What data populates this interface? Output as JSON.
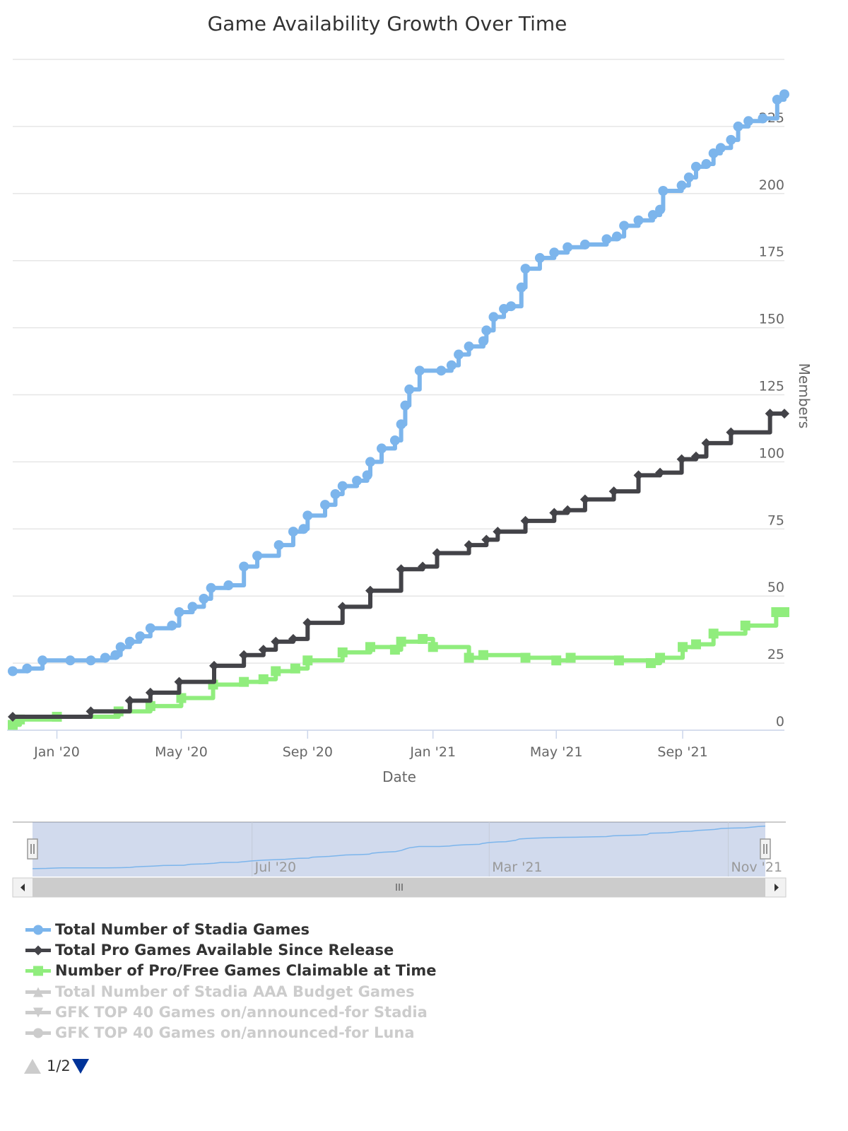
{
  "chart_data": {
    "type": "line",
    "step": true,
    "title": "Game Availability Growth Over Time",
    "xlabel": "Date",
    "ylabel": "Members",
    "xlim": [
      "2019-11-19",
      "2021-12-09"
    ],
    "ylim": [
      0,
      250
    ],
    "y_ticks": [
      0,
      25,
      50,
      75,
      100,
      125,
      150,
      175,
      200,
      225
    ],
    "x_ticks": [
      {
        "date": "2020-01-01",
        "label": "Jan '20"
      },
      {
        "date": "2020-05-01",
        "label": "May '20"
      },
      {
        "date": "2020-09-01",
        "label": "Sep '20"
      },
      {
        "date": "2021-01-01",
        "label": "Jan '21"
      },
      {
        "date": "2021-05-01",
        "label": "May '21"
      },
      {
        "date": "2021-09-01",
        "label": "Sep '21"
      }
    ],
    "grid": true,
    "y_axis_side": "right",
    "legend_position": "bottom",
    "series": [
      {
        "name": "Total Number of Stadia Games",
        "color": "#7cb5ec",
        "marker": "circle",
        "visible": true,
        "points": [
          [
            "2019-11-19",
            22
          ],
          [
            "2019-12-03",
            23
          ],
          [
            "2019-12-18",
            26
          ],
          [
            "2020-01-14",
            26
          ],
          [
            "2020-02-03",
            26
          ],
          [
            "2020-02-17",
            27
          ],
          [
            "2020-02-27",
            28
          ],
          [
            "2020-03-03",
            31
          ],
          [
            "2020-03-12",
            33
          ],
          [
            "2020-03-22",
            35
          ],
          [
            "2020-04-01",
            38
          ],
          [
            "2020-04-22",
            39
          ],
          [
            "2020-04-29",
            44
          ],
          [
            "2020-05-12",
            46
          ],
          [
            "2020-05-23",
            49
          ],
          [
            "2020-05-30",
            53
          ],
          [
            "2020-06-16",
            54
          ],
          [
            "2020-07-01",
            61
          ],
          [
            "2020-07-14",
            65
          ],
          [
            "2020-08-04",
            69
          ],
          [
            "2020-08-18",
            74
          ],
          [
            "2020-08-28",
            75
          ],
          [
            "2020-09-01",
            80
          ],
          [
            "2020-09-18",
            84
          ],
          [
            "2020-09-28",
            88
          ],
          [
            "2020-10-05",
            91
          ],
          [
            "2020-10-19",
            93
          ],
          [
            "2020-10-29",
            95
          ],
          [
            "2020-11-01",
            100
          ],
          [
            "2020-11-12",
            105
          ],
          [
            "2020-11-25",
            108
          ],
          [
            "2020-12-01",
            114
          ],
          [
            "2020-12-05",
            121
          ],
          [
            "2020-12-09",
            127
          ],
          [
            "2020-12-19",
            134
          ],
          [
            "2021-01-09",
            134
          ],
          [
            "2021-01-19",
            136
          ],
          [
            "2021-01-26",
            140
          ],
          [
            "2021-02-05",
            143
          ],
          [
            "2021-02-19",
            145
          ],
          [
            "2021-02-22",
            149
          ],
          [
            "2021-03-01",
            154
          ],
          [
            "2021-03-11",
            157
          ],
          [
            "2021-03-18",
            158
          ],
          [
            "2021-03-28",
            165
          ],
          [
            "2021-04-01",
            172
          ],
          [
            "2021-04-15",
            176
          ],
          [
            "2021-04-29",
            178
          ],
          [
            "2021-05-12",
            180
          ],
          [
            "2021-05-29",
            181
          ],
          [
            "2021-06-19",
            183
          ],
          [
            "2021-06-29",
            184
          ],
          [
            "2021-07-06",
            188
          ],
          [
            "2021-07-20",
            190
          ],
          [
            "2021-08-03",
            192
          ],
          [
            "2021-08-10",
            194
          ],
          [
            "2021-08-13",
            201
          ],
          [
            "2021-08-31",
            203
          ],
          [
            "2021-09-07",
            206
          ],
          [
            "2021-09-14",
            210
          ],
          [
            "2021-09-24",
            211
          ],
          [
            "2021-10-01",
            215
          ],
          [
            "2021-10-08",
            217
          ],
          [
            "2021-10-18",
            220
          ],
          [
            "2021-10-25",
            225
          ],
          [
            "2021-11-04",
            227
          ],
          [
            "2021-11-18",
            228
          ],
          [
            "2021-12-02",
            235
          ],
          [
            "2021-12-09",
            237
          ]
        ]
      },
      {
        "name": "Total Pro Games Available Since Release",
        "color": "#434348",
        "marker": "diamond",
        "visible": true,
        "points": [
          [
            "2019-11-19",
            5
          ],
          [
            "2020-02-03",
            7
          ],
          [
            "2020-03-12",
            11
          ],
          [
            "2020-04-01",
            14
          ],
          [
            "2020-04-29",
            18
          ],
          [
            "2020-06-02",
            24
          ],
          [
            "2020-07-01",
            28
          ],
          [
            "2020-07-20",
            30
          ],
          [
            "2020-08-01",
            33
          ],
          [
            "2020-08-18",
            34
          ],
          [
            "2020-09-01",
            40
          ],
          [
            "2020-10-05",
            46
          ],
          [
            "2020-11-01",
            52
          ],
          [
            "2020-12-01",
            60
          ],
          [
            "2020-12-22",
            61
          ],
          [
            "2021-01-05",
            66
          ],
          [
            "2021-02-05",
            69
          ],
          [
            "2021-02-22",
            71
          ],
          [
            "2021-03-05",
            74
          ],
          [
            "2021-04-01",
            78
          ],
          [
            "2021-04-29",
            81
          ],
          [
            "2021-05-12",
            82
          ],
          [
            "2021-05-29",
            86
          ],
          [
            "2021-06-26",
            89
          ],
          [
            "2021-07-20",
            95
          ],
          [
            "2021-08-10",
            96
          ],
          [
            "2021-08-31",
            101
          ],
          [
            "2021-09-14",
            102
          ],
          [
            "2021-09-24",
            107
          ],
          [
            "2021-10-18",
            111
          ],
          [
            "2021-11-25",
            118
          ],
          [
            "2021-12-09",
            118
          ]
        ]
      },
      {
        "name": "Number of Pro/Free Games Claimable at Time",
        "color": "#90ed7d",
        "marker": "square",
        "visible": true,
        "points": [
          [
            "2019-11-19",
            2
          ],
          [
            "2019-11-26",
            4
          ],
          [
            "2020-01-01",
            5
          ],
          [
            "2020-03-01",
            7
          ],
          [
            "2020-04-01",
            9
          ],
          [
            "2020-05-01",
            12
          ],
          [
            "2020-06-01",
            17
          ],
          [
            "2020-07-01",
            18
          ],
          [
            "2020-07-20",
            19
          ],
          [
            "2020-08-01",
            22
          ],
          [
            "2020-08-20",
            23
          ],
          [
            "2020-09-01",
            26
          ],
          [
            "2020-10-05",
            29
          ],
          [
            "2020-11-01",
            31
          ],
          [
            "2020-11-25",
            30
          ],
          [
            "2020-12-01",
            33
          ],
          [
            "2020-12-22",
            34
          ],
          [
            "2021-01-01",
            31
          ],
          [
            "2021-02-05",
            27
          ],
          [
            "2021-02-19",
            28
          ],
          [
            "2021-04-01",
            27
          ],
          [
            "2021-05-01",
            26
          ],
          [
            "2021-05-15",
            27
          ],
          [
            "2021-07-01",
            26
          ],
          [
            "2021-08-01",
            25
          ],
          [
            "2021-08-10",
            27
          ],
          [
            "2021-09-01",
            31
          ],
          [
            "2021-09-14",
            32
          ],
          [
            "2021-10-01",
            36
          ],
          [
            "2021-11-01",
            39
          ],
          [
            "2021-12-01",
            44
          ],
          [
            "2021-12-09",
            44
          ]
        ]
      },
      {
        "name": "Total Number of Stadia AAA Budget Games",
        "color": "#cccccc",
        "marker": "triangle",
        "visible": false
      },
      {
        "name": "GFK TOP 40 Games on/announced-for Stadia",
        "color": "#cccccc",
        "marker": "triangle-down",
        "visible": false
      },
      {
        "name": "GFK TOP 40 Games on/announced-for Luna",
        "color": "#cccccc",
        "marker": "circle",
        "visible": false
      }
    ],
    "navigator": {
      "ticks": [
        {
          "date": "2020-07-01",
          "label": "Jul '20"
        },
        {
          "date": "2021-03-01",
          "label": "Mar '21"
        },
        {
          "date": "2021-11-01",
          "label": "Nov '21"
        }
      ]
    }
  },
  "legend_pager": {
    "text": "1/2"
  }
}
